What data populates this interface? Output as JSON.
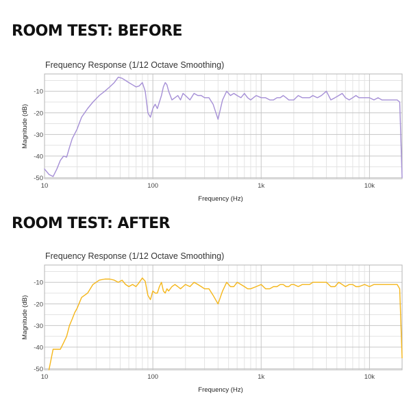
{
  "sections": [
    {
      "heading": "ROOM TEST: BEFORE"
    },
    {
      "heading": "ROOM TEST: AFTER"
    }
  ],
  "chart_data": [
    {
      "type": "line",
      "title": "Frequency Response (1/12 Octave Smoothing)",
      "xlabel": "Frequency (Hz)",
      "ylabel": "Magnitude (dB)",
      "xscale": "log",
      "xlim": [
        10,
        20000
      ],
      "ylim": [
        -50.5,
        -2
      ],
      "xticks": [
        10,
        100,
        1000,
        10000
      ],
      "xtick_labels": [
        "10",
        "100",
        "1k",
        "10k"
      ],
      "yticks": [
        -10,
        -20,
        -30,
        -40,
        -50
      ],
      "ytick_labels": [
        "-10",
        "-20",
        "-30",
        "-40",
        "-50"
      ],
      "grid": true,
      "color": "#a58fd6",
      "series": [
        {
          "x": [
            10,
            11,
            12,
            13,
            14,
            15,
            16,
            17,
            18,
            20,
            22,
            25,
            28,
            32,
            36,
            40,
            44,
            48,
            52,
            56,
            60,
            65,
            70,
            75,
            80,
            85,
            90,
            95,
            100,
            105,
            110,
            115,
            120,
            125,
            130,
            135,
            140,
            150,
            160,
            170,
            180,
            190,
            200,
            220,
            240,
            260,
            280,
            300,
            330,
            360,
            400,
            440,
            480,
            520,
            560,
            600,
            650,
            700,
            750,
            800,
            900,
            1000,
            1100,
            1200,
            1300,
            1400,
            1500,
            1600,
            1700,
            1800,
            1900,
            2000,
            2200,
            2400,
            2600,
            2800,
            3000,
            3300,
            3600,
            4000,
            4400,
            4800,
            5200,
            5600,
            6000,
            6500,
            7000,
            7500,
            8000,
            9000,
            10000,
            11000,
            12000,
            13000,
            14000,
            15000,
            16000,
            17000,
            18000,
            19000,
            20000
          ],
          "y": [
            -46,
            -48.5,
            -49.5,
            -46,
            -42,
            -40,
            -40.5,
            -36,
            -32,
            -27.5,
            -22,
            -18,
            -15,
            -12,
            -10,
            -8,
            -6,
            -3.5,
            -4,
            -5,
            -6,
            -7,
            -8,
            -7.5,
            -6,
            -10,
            -20,
            -22,
            -18,
            -16,
            -18,
            -15,
            -12,
            -8,
            -6,
            -7,
            -10,
            -14,
            -13,
            -12,
            -14,
            -11,
            -12,
            -14,
            -11,
            -12,
            -12,
            -13,
            -13,
            -16,
            -23,
            -14,
            -10,
            -12,
            -11,
            -12,
            -13,
            -11,
            -13,
            -14,
            -12,
            -13,
            -13,
            -14,
            -14,
            -13,
            -13,
            -12,
            -13,
            -14,
            -14,
            -14,
            -12,
            -13,
            -13,
            -13,
            -12,
            -13,
            -12,
            -10,
            -14,
            -13,
            -12,
            -11,
            -13,
            -14,
            -13,
            -12,
            -13,
            -13,
            -13,
            -14,
            -13,
            -14,
            -14,
            -14,
            -14,
            -14,
            -14,
            -15,
            -50
          ]
        }
      ]
    },
    {
      "type": "line",
      "title": "Frequency Response (1/12 Octave Smoothing)",
      "xlabel": "Frequency (Hz)",
      "ylabel": "Magnitude (dB)",
      "xscale": "log",
      "xlim": [
        10,
        20000
      ],
      "ylim": [
        -50.5,
        -2
      ],
      "xticks": [
        10,
        100,
        1000,
        10000
      ],
      "xtick_labels": [
        "10",
        "100",
        "1k",
        "10k"
      ],
      "yticks": [
        -10,
        -20,
        -30,
        -40,
        -50
      ],
      "ytick_labels": [
        "-10",
        "-20",
        "-30",
        "-40",
        "-50"
      ],
      "grid": true,
      "color": "#f5b619",
      "series": [
        {
          "x": [
            11,
            12,
            13,
            14,
            15,
            16,
            17,
            18,
            19,
            20,
            22,
            25,
            28,
            32,
            36,
            40,
            44,
            48,
            52,
            56,
            60,
            65,
            70,
            75,
            80,
            85,
            90,
            95,
            100,
            105,
            110,
            115,
            120,
            125,
            130,
            135,
            140,
            150,
            160,
            170,
            180,
            190,
            200,
            220,
            240,
            260,
            280,
            300,
            330,
            360,
            400,
            440,
            480,
            520,
            560,
            600,
            650,
            700,
            750,
            800,
            900,
            1000,
            1100,
            1200,
            1300,
            1400,
            1500,
            1600,
            1700,
            1800,
            1900,
            2000,
            2200,
            2400,
            2600,
            2800,
            3000,
            3300,
            3600,
            4000,
            4400,
            4800,
            5200,
            5600,
            6000,
            6500,
            7000,
            7500,
            8000,
            9000,
            10000,
            11000,
            12000,
            13000,
            14000,
            15000,
            16000,
            17000,
            18000,
            19000,
            20000
          ],
          "y": [
            -50.5,
            -41,
            -41,
            -41,
            -38,
            -35,
            -30,
            -27,
            -24,
            -22,
            -17,
            -15,
            -11,
            -9,
            -8.5,
            -8.5,
            -9,
            -10,
            -9,
            -11,
            -12,
            -11,
            -12,
            -10,
            -8,
            -9.5,
            -16,
            -18,
            -14,
            -15,
            -15,
            -12,
            -10,
            -14,
            -15,
            -13,
            -14,
            -12,
            -11,
            -12,
            -13,
            -12,
            -11,
            -12,
            -10,
            -11,
            -12,
            -13,
            -13,
            -16,
            -20,
            -14,
            -10,
            -12,
            -12,
            -10,
            -11,
            -12,
            -13,
            -13,
            -12,
            -11,
            -13,
            -13,
            -12,
            -12,
            -11,
            -11,
            -12,
            -12,
            -11,
            -11,
            -12,
            -11,
            -11,
            -11,
            -10,
            -10,
            -10,
            -10,
            -12,
            -12,
            -10,
            -11,
            -12,
            -11,
            -11,
            -12,
            -12,
            -11,
            -12,
            -11,
            -11,
            -11,
            -11,
            -11,
            -11,
            -11,
            -11,
            -13,
            -45
          ]
        }
      ]
    }
  ]
}
